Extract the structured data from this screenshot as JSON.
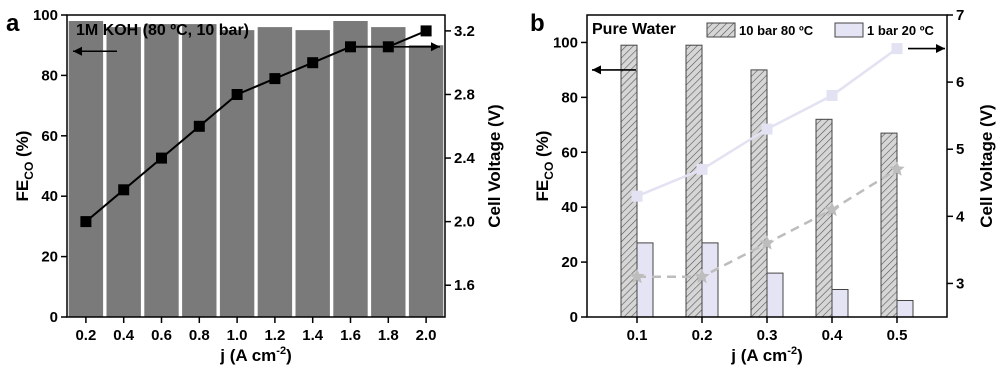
{
  "chart_data": [
    {
      "type": "bar",
      "panel_letter": "a",
      "title": "1M KOH (80 ºC, 10 bar)",
      "categories": [
        "0.2",
        "0.4",
        "0.6",
        "0.8",
        "1.0",
        "1.2",
        "1.4",
        "1.6",
        "1.8",
        "2.0"
      ],
      "xlabel_main": "j (A cm",
      "xlabel_sup": "-2",
      "xlabel_close": ")",
      "ylabel_main": "FE",
      "ylabel_sub": "CO",
      "ylabel_unit": " (%)",
      "y2label": "Cell Voltage (V)",
      "ylim": [
        0,
        100
      ],
      "yticks": [
        "0",
        "20",
        "40",
        "60",
        "80",
        "100"
      ],
      "y2lim": [
        1.4,
        3.3
      ],
      "y2ticks": [
        "1.6",
        "2.0",
        "2.4",
        "2.8",
        "3.2"
      ],
      "series": [
        {
          "kind": "bar",
          "axis": "left",
          "values": [
            98,
            96,
            97,
            97,
            95,
            96,
            95,
            98,
            96,
            90
          ],
          "color": "#7a7a7a"
        },
        {
          "kind": "line",
          "axis": "right",
          "marker": "square",
          "values": [
            2.0,
            2.2,
            2.4,
            2.6,
            2.8,
            2.9,
            3.0,
            3.1,
            3.1,
            3.2
          ],
          "color": "#000000"
        }
      ],
      "arrows": [
        {
          "direction": "left",
          "y_axis": "left",
          "y": 88
        },
        {
          "direction": "right",
          "y_axis": "right",
          "y": 3.1
        }
      ]
    },
    {
      "type": "bar",
      "panel_letter": "b",
      "title": "Pure Water",
      "categories": [
        "0.1",
        "0.2",
        "0.3",
        "0.4",
        "0.5"
      ],
      "xlabel_main": "j (A cm",
      "xlabel_sup": "-2",
      "xlabel_close": ")",
      "ylabel_main": "FE",
      "ylabel_sub": "CO",
      "ylabel_unit": " (%)",
      "y2label": "Cell Voltage (V)",
      "ylim": [
        0,
        110
      ],
      "yticks": [
        "0",
        "20",
        "40",
        "60",
        "80",
        "100"
      ],
      "y2lim": [
        2.5,
        7
      ],
      "y2ticks": [
        "3",
        "4",
        "5",
        "6",
        "7"
      ],
      "legend": [
        {
          "label": "10 bar 80 ºC",
          "pattern": "hatch"
        },
        {
          "label": "1 bar 20 ºC",
          "pattern": "solid-lavender"
        }
      ],
      "series": [
        {
          "name": "10 bar 80 ºC",
          "kind": "bar",
          "axis": "left",
          "values": [
            99,
            99,
            90,
            72,
            67
          ],
          "color": "#bdbdbd"
        },
        {
          "name": "1 bar 20 ºC",
          "kind": "bar",
          "axis": "left",
          "values": [
            27,
            27,
            16,
            10,
            6
          ],
          "color": "#e4e4f4"
        },
        {
          "kind": "line",
          "axis": "right",
          "marker": "star",
          "style": "dashed",
          "values": [
            3.1,
            3.1,
            3.6,
            4.1,
            4.7
          ],
          "color": "#bdbdbd"
        },
        {
          "kind": "line",
          "axis": "right",
          "marker": "square",
          "style": "solid",
          "values": [
            4.3,
            4.7,
            5.3,
            5.8,
            6.5
          ],
          "color": "#e2e2f2"
        }
      ],
      "arrows": [
        {
          "direction": "left",
          "y_axis": "left",
          "y": 90
        },
        {
          "direction": "right",
          "y_axis": "right",
          "y": 6.5
        }
      ]
    }
  ]
}
